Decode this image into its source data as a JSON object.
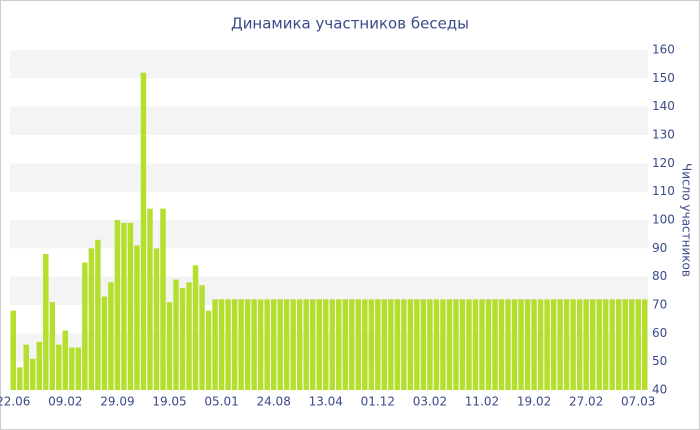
{
  "chart_data": {
    "type": "bar",
    "title": "Динамика участников беседы",
    "y_label": "Число участников",
    "categories": [
      "22.06",
      null,
      null,
      null,
      null,
      null,
      null,
      null,
      "09.02",
      null,
      null,
      null,
      null,
      null,
      null,
      null,
      "29.09",
      null,
      null,
      null,
      null,
      null,
      null,
      null,
      "19.05",
      null,
      null,
      null,
      null,
      null,
      null,
      null,
      "05.01",
      null,
      null,
      null,
      null,
      null,
      null,
      null,
      "24.08",
      null,
      null,
      null,
      null,
      null,
      null,
      null,
      "13.04",
      null,
      null,
      null,
      null,
      null,
      null,
      null,
      "01.12",
      null,
      null,
      null,
      null,
      null,
      null,
      null,
      "03.02",
      null,
      null,
      null,
      null,
      null,
      null,
      null,
      "11.02",
      null,
      null,
      null,
      null,
      null,
      null,
      null,
      "19.02",
      null,
      null,
      null,
      null,
      null,
      null,
      null,
      "27.02",
      null,
      null,
      null,
      null,
      null,
      null,
      null,
      "07.03",
      null
    ],
    "values": [
      68,
      48,
      56,
      51,
      57,
      88,
      71,
      56,
      61,
      55,
      55,
      85,
      90,
      93,
      73,
      78,
      100,
      99,
      99,
      91,
      152,
      104,
      90,
      104,
      71,
      79,
      76,
      78,
      84,
      77,
      68,
      72,
      72,
      72,
      72,
      72,
      72,
      72,
      72,
      72,
      72,
      72,
      72,
      72,
      72,
      72,
      72,
      72,
      72,
      72,
      72,
      72,
      72,
      72,
      72,
      72,
      72,
      72,
      72,
      72,
      72,
      72,
      72,
      72,
      72,
      72,
      72,
      72,
      72,
      72,
      72,
      72,
      72,
      72,
      72,
      72,
      72,
      72,
      72,
      72,
      72,
      72,
      72,
      72,
      72,
      72,
      72,
      72,
      72,
      72,
      72,
      72,
      72,
      72,
      72,
      72,
      72,
      72
    ],
    "color": "#b5df2e",
    "ylim": [
      40,
      160
    ],
    "yticks": [
      40,
      50,
      60,
      70,
      80,
      90,
      100,
      110,
      120,
      130,
      140,
      150,
      160
    ],
    "grid": true
  }
}
